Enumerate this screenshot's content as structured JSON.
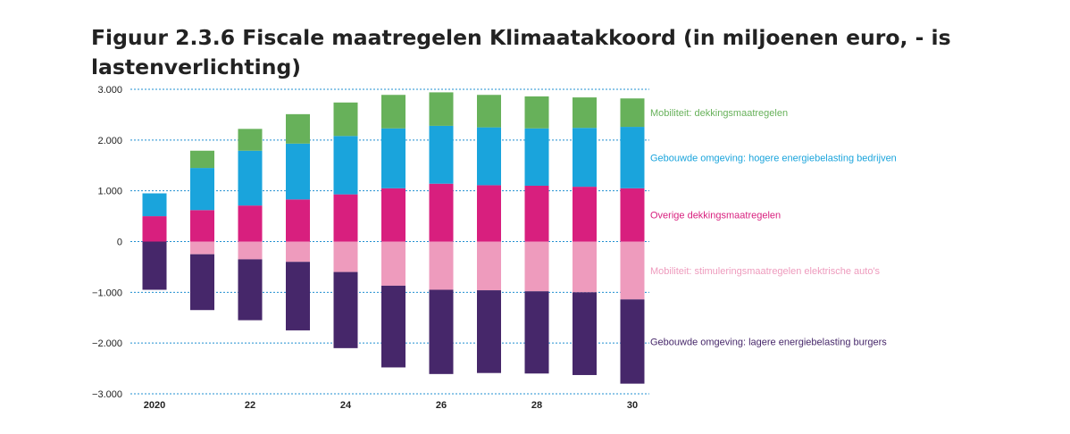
{
  "chart_data": {
    "type": "bar",
    "stacked": true,
    "title": "Figuur 2.3.6 Fiscale maatregelen Klimaatakkoord (in miljoenen euro, - is lastenverlichting)",
    "xlabel": "",
    "ylabel": "",
    "ylim": [
      -3000,
      3000
    ],
    "yticks": [
      3000,
      2000,
      1000,
      0,
      -1000,
      -2000,
      -3000
    ],
    "ytick_labels": [
      "3.000",
      "2.000",
      "1.000",
      "0",
      "−1.000",
      "−2.000",
      "−3.000"
    ],
    "categories": [
      "2020",
      "21",
      "22",
      "23",
      "24",
      "25",
      "26",
      "27",
      "28",
      "29",
      "30"
    ],
    "xtick_labels": [
      "2020",
      "",
      "22",
      "",
      "24",
      "",
      "26",
      "",
      "28",
      "",
      "30"
    ],
    "grid": "dotted horizontal",
    "legend_placement": "right",
    "series": [
      {
        "name": "Overige dekkingsmaatregelen",
        "color": "#d81f7e",
        "values": [
          500,
          620,
          710,
          830,
          930,
          1050,
          1140,
          1110,
          1100,
          1080,
          1050
        ]
      },
      {
        "name": "Gebouwde omgeving: hogere energiebelasting bedrijven",
        "color": "#1aa4dc",
        "values": [
          450,
          830,
          1080,
          1100,
          1150,
          1180,
          1140,
          1140,
          1130,
          1160,
          1210
        ]
      },
      {
        "name": "Mobiliteit: dekkingsmaatregelen",
        "color": "#67b15a",
        "values": [
          0,
          340,
          430,
          580,
          660,
          660,
          660,
          640,
          630,
          600,
          560
        ]
      },
      {
        "name": "Mobiliteit: stimuleringsmaatregelen elektrische auto's",
        "color": "#ee9bbd",
        "values": [
          0,
          -250,
          -350,
          -400,
          -600,
          -870,
          -950,
          -960,
          -980,
          -1000,
          -1140
        ]
      },
      {
        "name": "Gebouwde omgeving: lagere energiebelasting burgers",
        "color": "#46276a",
        "values": [
          -950,
          -1100,
          -1200,
          -1350,
          -1500,
          -1610,
          -1660,
          -1630,
          -1620,
          -1630,
          -1660
        ]
      }
    ]
  }
}
